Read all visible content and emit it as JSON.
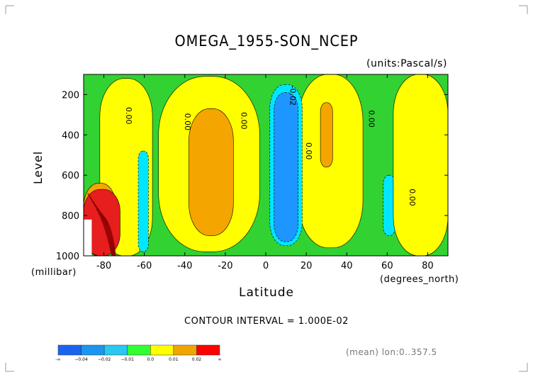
{
  "chart_data": {
    "type": "heatmap",
    "title": "OMEGA_1955-SON_NCEP",
    "units": "(units:Pascal/s)",
    "ylabel": "Level",
    "yunits": "(millibar)",
    "xlabel": "Latitude",
    "xunits": "(degrees_north)",
    "xlim": [
      -90,
      90
    ],
    "ylim": [
      1000,
      100
    ],
    "x_ticks": [
      "-80",
      "-60",
      "-40",
      "-20",
      "0",
      "20",
      "40",
      "60",
      "80"
    ],
    "x_tick_values": [
      -80,
      -60,
      -40,
      -20,
      0,
      20,
      40,
      60,
      80
    ],
    "y_ticks": [
      "200",
      "400",
      "600",
      "800",
      "1000"
    ],
    "y_tick_values": [
      200,
      400,
      600,
      800,
      1000
    ],
    "contour_interval": "CONTOUR INTERVAL = 1.000E-02",
    "contour_labels": [
      {
        "text": "0.00",
        "lat": -69,
        "lev": 305
      },
      {
        "text": "0.00",
        "lat": -40,
        "lev": 335
      },
      {
        "text": "0.00",
        "lat": -12,
        "lev": 330
      },
      {
        "text": "-0.02",
        "lat": 12,
        "lev": 205
      },
      {
        "text": "0.00",
        "lat": 20,
        "lev": 480
      },
      {
        "text": "0.00",
        "lat": 51,
        "lev": 320
      },
      {
        "text": "0.00",
        "lat": 71,
        "lev": 710
      }
    ],
    "regions": [
      {
        "level": "0.0",
        "lat": [
          -90,
          90
        ],
        "lev": [
          100,
          1000
        ]
      },
      {
        "level": "0.01",
        "lat": [
          -82,
          -56
        ],
        "lev": [
          120,
          1000
        ]
      },
      {
        "level": "0.01",
        "lat": [
          -53,
          -3
        ],
        "lev": [
          110,
          980
        ]
      },
      {
        "level": "0.02",
        "lat": [
          -38,
          -16
        ],
        "lev": [
          270,
          900
        ]
      },
      {
        "level": "-0.01",
        "lat": [
          -63,
          -58
        ],
        "lev": [
          480,
          980
        ]
      },
      {
        "level": "0.01",
        "lat": [
          16,
          48
        ],
        "lev": [
          100,
          960
        ]
      },
      {
        "level": "0.02",
        "lat": [
          27,
          33
        ],
        "lev": [
          240,
          560
        ]
      },
      {
        "level": "-0.01",
        "lat": [
          2,
          18
        ],
        "lev": [
          150,
          950
        ]
      },
      {
        "level": "-0.02",
        "lat": [
          4,
          16
        ],
        "lev": [
          190,
          930
        ]
      },
      {
        "level": "-0.01",
        "lat": [
          58,
          64
        ],
        "lev": [
          600,
          900
        ]
      },
      {
        "level": "0.01",
        "lat": [
          63,
          90
        ],
        "lev": [
          100,
          1000
        ]
      },
      {
        "level": "0.02",
        "lat": [
          -90,
          -74
        ],
        "lev": [
          640,
          1000
        ]
      },
      {
        "level": "0.02+",
        "lat": [
          -90,
          -72
        ],
        "lev": [
          670,
          1000
        ]
      }
    ],
    "legend": {
      "labels": [
        "-∞",
        "−0.04",
        "−0.02",
        "−0.01",
        "0.0",
        "0.01",
        "0.02",
        "∞"
      ],
      "colors": [
        "#1a64f0",
        "#1a96f0",
        "#28c8f0",
        "#32ff32",
        "#ffff00",
        "#f0a500",
        "#ff0000"
      ]
    }
  },
  "mean_note": "(mean) lon:0..357.5",
  "colors": {
    "green": "#32d232",
    "yellow": "#ffff00",
    "orange": "#f5a500",
    "cyan": "#00e6ff",
    "blue": "#1e96ff",
    "red": "#e61e1e",
    "darkred": "#8c0000"
  }
}
